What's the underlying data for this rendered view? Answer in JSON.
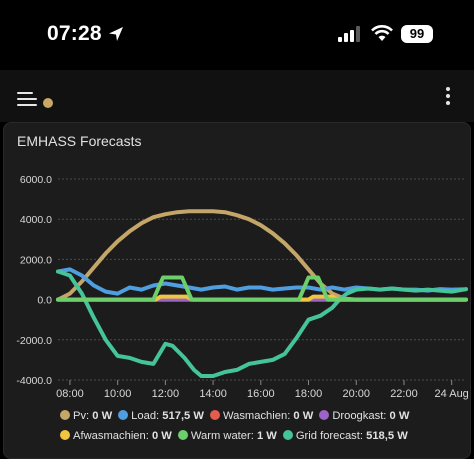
{
  "status_bar": {
    "time": "07:28",
    "battery": "99"
  },
  "card": {
    "title": "EMHASS Forecasts"
  },
  "chart_data": {
    "type": "line",
    "x_ticks": [
      "08:00",
      "10:00",
      "12:00",
      "14:00",
      "16:00",
      "18:00",
      "20:00",
      "22:00",
      "24 Aug"
    ],
    "y_ticks": [
      "6000.0",
      "4000.0",
      "2000.0",
      "0.0",
      "-2000.0",
      "-4000.0"
    ],
    "ylim": [
      -4000,
      6000
    ],
    "xlim": [
      7.5,
      24.6
    ],
    "grid": true,
    "legend_position": "bottom",
    "series": [
      {
        "name": "Pv",
        "color": "#c4a669",
        "x": [
          7.5,
          8,
          8.5,
          9,
          9.5,
          10,
          10.5,
          11,
          11.5,
          12,
          12.5,
          13,
          13.5,
          14,
          14.5,
          15,
          15.5,
          16,
          16.5,
          17,
          17.5,
          18,
          18.5,
          19,
          19.5,
          20,
          20.5,
          21,
          21.5,
          22,
          22.5,
          23,
          23.5,
          24,
          24.6
        ],
        "y": [
          0,
          300,
          900,
          1600,
          2300,
          2900,
          3400,
          3800,
          4100,
          4250,
          4350,
          4400,
          4400,
          4400,
          4350,
          4200,
          4000,
          3700,
          3300,
          2800,
          2200,
          1500,
          800,
          300,
          50,
          0,
          0,
          0,
          0,
          0,
          0,
          0,
          0,
          0,
          0
        ]
      },
      {
        "name": "Load",
        "color": "#4f9ee0",
        "x": [
          7.5,
          8,
          8.5,
          9,
          9.5,
          10,
          10.5,
          11,
          11.5,
          12,
          12.5,
          13,
          13.5,
          14,
          14.5,
          15,
          15.5,
          16,
          16.5,
          17,
          17.5,
          18,
          18.5,
          19,
          19.5,
          20,
          20.5,
          21,
          21.5,
          22,
          22.5,
          23,
          23.5,
          24,
          24.6
        ],
        "y": [
          1400,
          1500,
          1200,
          700,
          400,
          300,
          600,
          500,
          700,
          800,
          700,
          600,
          500,
          600,
          650,
          500,
          600,
          600,
          500,
          550,
          600,
          600,
          500,
          600,
          500,
          600,
          550,
          500,
          550,
          500,
          500,
          450,
          520,
          500,
          517.5
        ],
        "legend_value": "517,5 W"
      },
      {
        "name": "Wasmachien",
        "color": "#e35d4f",
        "x": [
          7.5,
          24.6
        ],
        "y": [
          0,
          0
        ],
        "legend_value": "0 W"
      },
      {
        "name": "Droogkast",
        "color": "#9c63c9",
        "x": [
          7.5,
          24.6
        ],
        "y": [
          0,
          0
        ],
        "legend_value": "0 W"
      },
      {
        "name": "Afwasmachien",
        "color": "#f0c542",
        "x": [
          7.5,
          11.6,
          11.8,
          12.9,
          13.1,
          18.0,
          18.2,
          19.0,
          19.2,
          24.6
        ],
        "y": [
          0,
          0,
          150,
          150,
          0,
          0,
          150,
          150,
          0,
          0
        ],
        "legend_value": "0 W"
      },
      {
        "name": "Warm water",
        "color": "#6ccf6c",
        "x": [
          7.5,
          11.5,
          11.9,
          12.7,
          13.1,
          17.6,
          18.0,
          18.4,
          18.8,
          24.6
        ],
        "y": [
          0,
          0,
          1100,
          1100,
          0,
          0,
          1100,
          1100,
          0,
          0
        ],
        "legend_value": "1 W"
      },
      {
        "name": "Grid forecast",
        "color": "#45c49a",
        "x": [
          7.5,
          8,
          8.5,
          9,
          9.5,
          10,
          10.5,
          11,
          11.5,
          12,
          12.3,
          12.8,
          13.2,
          13.5,
          14,
          14.5,
          15,
          15.5,
          16,
          16.5,
          17,
          17.5,
          18,
          18.5,
          19,
          19.3,
          19.6,
          20,
          20.5,
          21,
          21.5,
          22,
          22.5,
          23,
          23.5,
          24,
          24.6
        ],
        "y": [
          1400,
          1200,
          300,
          -900,
          -2000,
          -2800,
          -2900,
          -3100,
          -3200,
          -2200,
          -2300,
          -2900,
          -3500,
          -3800,
          -3800,
          -3600,
          -3500,
          -3200,
          -3100,
          -3000,
          -2700,
          -1900,
          -1000,
          -800,
          -400,
          0,
          300,
          500,
          550,
          500,
          550,
          500,
          450,
          500,
          450,
          400,
          518.5
        ],
        "legend_value": "518,5 W"
      }
    ]
  },
  "legend": {
    "row1": [
      {
        "label": "Pv:",
        "value": "0 W",
        "color": "#c4a669"
      },
      {
        "label": "Load:",
        "value": "517,5 W",
        "color": "#4f9ee0"
      },
      {
        "label": "Wasmachien:",
        "value": "0 W",
        "color": "#e35d4f"
      },
      {
        "label": "Droogkast:",
        "value": "0 W",
        "color": "#9c63c9"
      }
    ],
    "row2": [
      {
        "label": "Afwasmachien:",
        "value": "0 W",
        "color": "#f0c542"
      },
      {
        "label": "Warm water:",
        "value": "1 W",
        "color": "#6ccf6c"
      },
      {
        "label": "Grid forecast:",
        "value": "518,5 W",
        "color": "#45c49a"
      }
    ]
  }
}
